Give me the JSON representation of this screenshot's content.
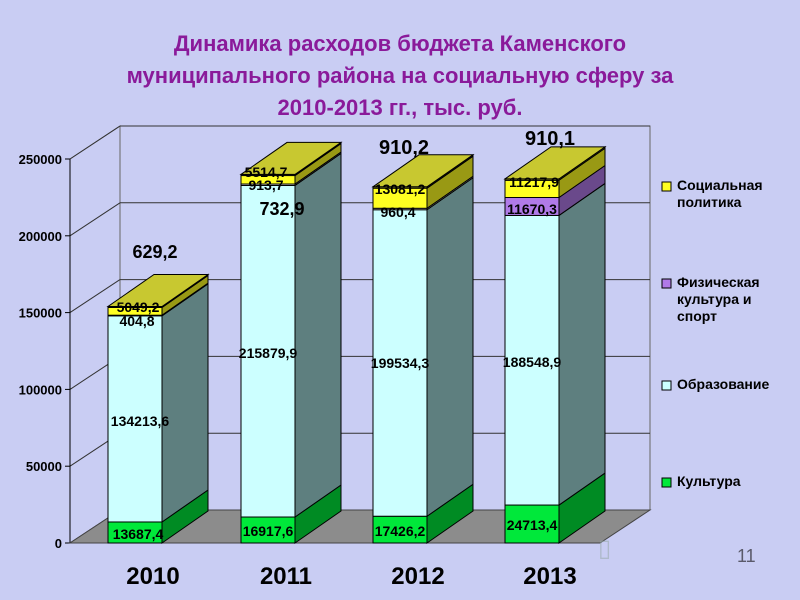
{
  "title_lines": [
    "Динамика расходов бюджета Каменского",
    "муниципального района на социальную сферу за",
    "2010-2013 гг., тыс. руб."
  ],
  "page_number": "11",
  "colors": {
    "Культура": "#00e83a",
    "Образование": "#ccffff",
    "Физическая культура и спорт": "#b07ae8",
    "Социальная политика": "#ffff22",
    "gray_series": "#c8c830",
    "background": "#c9cdf3",
    "floor": "#8c8c8c",
    "side_dark": "#5e7f7f",
    "title": "#8a1a9a"
  },
  "chart_data": {
    "type": "bar",
    "stacked": true,
    "three_d": true,
    "categories": [
      "2010",
      "2011",
      "2012",
      "2013"
    ],
    "ylim": [
      0,
      250000
    ],
    "yticks": [
      "0",
      "50000",
      "100000",
      "150000",
      "200000",
      "250000"
    ],
    "grid": true,
    "legend_position": "right",
    "series": [
      {
        "name": "Культура",
        "values": [
          13687.4,
          16917.6,
          17426.2,
          24713.4
        ],
        "labels": [
          "13687,4",
          "16917,6",
          "17426,2",
          "24713,4"
        ]
      },
      {
        "name": "Образование",
        "values": [
          134213.6,
          215879.9,
          199534.3,
          188548.9
        ],
        "labels": [
          "134213,6",
          "215879,9",
          "199534,3",
          "188548,9"
        ]
      },
      {
        "name": "",
        "values": [
          404.8,
          913.7,
          960.4,
          0
        ],
        "labels": [
          "404,8",
          "913,7",
          "960,4",
          ""
        ]
      },
      {
        "name": "Физическая культура и спорт",
        "values": [
          0,
          0,
          0,
          11670.3
        ],
        "labels": [
          "",
          "",
          "",
          "11670,3"
        ]
      },
      {
        "name": "Социальная политика",
        "values": [
          5049.2,
          5514.7,
          13081.2,
          11217.9
        ],
        "labels": [
          "5049,2",
          "5514,7",
          "13081,2",
          "11217,9"
        ]
      },
      {
        "name": "",
        "values": [
          629.2,
          732.9,
          910.2,
          910.1
        ],
        "labels": [
          "629,2",
          "732,9",
          "910,2",
          "910,1"
        ]
      }
    ],
    "legend": [
      "Социальная политика",
      "Физическая культура и спорт",
      "Образование",
      "Культура"
    ]
  }
}
